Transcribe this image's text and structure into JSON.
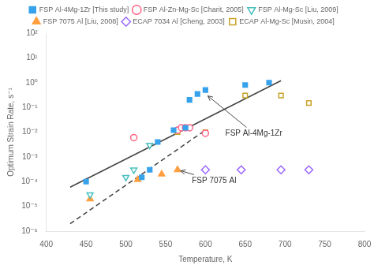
{
  "chart_data": {
    "type": "scatter",
    "xlabel": "Temperature, K",
    "ylabel": "Optimum Strain Rate, s⁻¹",
    "log": "y",
    "grid": false,
    "legend": "top",
    "xlim": [
      400,
      800
    ],
    "xticks": [
      400,
      450,
      500,
      550,
      600,
      650,
      700,
      750,
      800
    ],
    "ylim": [
      1e-06,
      100
    ],
    "yticks": [
      {
        "value": 1e-06,
        "label": "10⁻⁶"
      },
      {
        "value": 1e-05,
        "label": "10⁻⁵"
      },
      {
        "value": 0.0001,
        "label": "10⁻⁴"
      },
      {
        "value": 0.001,
        "label": "10⁻³"
      },
      {
        "value": 0.01,
        "label": "10⁻²"
      },
      {
        "value": 0.1,
        "label": "10⁻¹"
      },
      {
        "value": 1,
        "label": "10⁰"
      },
      {
        "value": 10,
        "label": "10¹"
      },
      {
        "value": 100,
        "label": "10²"
      }
    ],
    "series": [
      {
        "name": "FSP Al-4Mg-1Zr [This study]",
        "type": "scatter",
        "marker": "square",
        "x": [
          450,
          520,
          530,
          540,
          560,
          575,
          580,
          590,
          600,
          650,
          680
        ],
        "values": [
          0.0001,
          0.00015,
          0.0003,
          0.004,
          0.012,
          0.015,
          0.2,
          0.35,
          0.5,
          0.8,
          1.0
        ]
      },
      {
        "name": "FSP Al-Zn-Mg-Sc [Charit, 2005]",
        "type": "scatter",
        "marker": "circle-open",
        "x": [
          510,
          565,
          570,
          575,
          580,
          600
        ],
        "values": [
          0.006,
          0.012,
          0.015,
          0.015,
          0.015,
          0.009
        ]
      },
      {
        "name": "FSP Al-Mg-Sc [Liu, 2009]",
        "type": "scatter",
        "marker": "triangle-down-open",
        "x": [
          455,
          500,
          510,
          530
        ],
        "values": [
          3e-05,
          0.00015,
          0.0003,
          0.003
        ]
      },
      {
        "name": "FSP 7075 Al [Liu, 2008]",
        "type": "scatter",
        "marker": "triangle",
        "x": [
          455,
          515,
          545,
          565
        ],
        "values": [
          2e-05,
          0.00012,
          0.0002,
          0.0003
        ]
      },
      {
        "name": "ECAP 7034 Al [Cheng, 2003]",
        "type": "scatter",
        "marker": "diamond-open",
        "x": [
          600,
          645,
          695,
          730
        ],
        "values": [
          0.0003,
          0.0003,
          0.0003,
          0.0003
        ]
      },
      {
        "name": "ECAP Al-Mg-Sc [Musin, 2004]",
        "type": "scatter",
        "marker": "square-open",
        "x": [
          565,
          600,
          650,
          695,
          730
        ],
        "values": [
          0.01,
          0.01,
          0.3,
          0.3,
          0.15
        ]
      },
      {
        "type": "line",
        "line_style": "solid",
        "x": [
          430,
          695
        ],
        "values": [
          6e-05,
          1.2
        ]
      },
      {
        "type": "line",
        "line_style": "dashed",
        "x": [
          430,
          600
        ],
        "values": [
          2e-06,
          0.012
        ]
      }
    ],
    "annotations": [
      {
        "text": "FSP Al-4Mg-1Zr",
        "x": 600,
        "y": 0.35,
        "text_x": 625,
        "text_y": 0.009
      },
      {
        "text": "FSP 7075 Al",
        "x": 565,
        "y": 0.0003,
        "text_x": 583,
        "text_y": 0.00011
      }
    ]
  }
}
